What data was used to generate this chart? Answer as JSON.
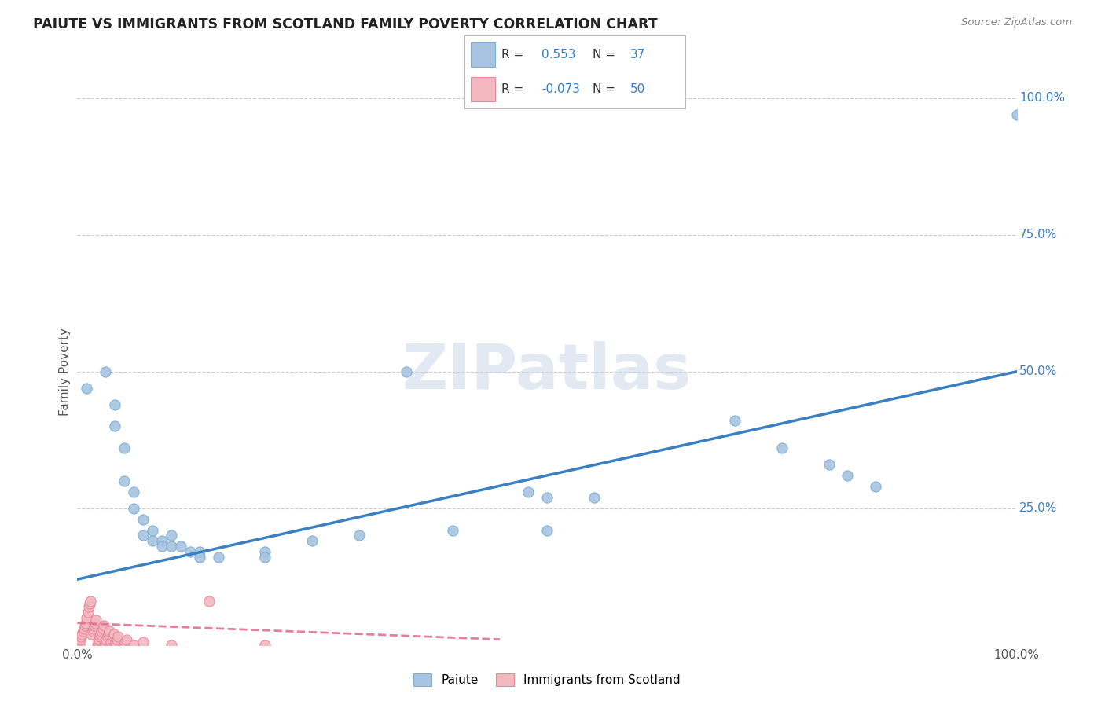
{
  "title": "PAIUTE VS IMMIGRANTS FROM SCOTLAND FAMILY POVERTY CORRELATION CHART",
  "source": "Source: ZipAtlas.com",
  "ylabel": "Family Poverty",
  "xlim": [
    0.0,
    1.0
  ],
  "ylim": [
    0.0,
    1.0
  ],
  "paiute_color": "#a8c4e0",
  "paiute_edge_color": "#7bafd4",
  "scotland_color": "#f4b8c1",
  "scotland_edge_color": "#e8879a",
  "paiute_R": 0.553,
  "paiute_N": 37,
  "scotland_R": -0.073,
  "scotland_N": 50,
  "watermark_text": "ZIPatlas",
  "trend_blue_color": "#3a7fc1",
  "trend_pink_color": "#e07090",
  "grid_color": "#cccccc",
  "paiute_trend_x0": 0.0,
  "paiute_trend_y0": 0.12,
  "paiute_trend_x1": 1.0,
  "paiute_trend_y1": 0.5,
  "scotland_trend_x0": 0.0,
  "scotland_trend_y0": 0.04,
  "scotland_trend_x1": 0.45,
  "scotland_trend_y1": 0.01,
  "paiute_points": [
    [
      0.01,
      0.47
    ],
    [
      0.03,
      0.5
    ],
    [
      0.04,
      0.44
    ],
    [
      0.04,
      0.4
    ],
    [
      0.05,
      0.36
    ],
    [
      0.05,
      0.3
    ],
    [
      0.06,
      0.28
    ],
    [
      0.06,
      0.25
    ],
    [
      0.07,
      0.23
    ],
    [
      0.07,
      0.2
    ],
    [
      0.08,
      0.21
    ],
    [
      0.08,
      0.19
    ],
    [
      0.09,
      0.19
    ],
    [
      0.09,
      0.18
    ],
    [
      0.1,
      0.2
    ],
    [
      0.1,
      0.18
    ],
    [
      0.11,
      0.18
    ],
    [
      0.12,
      0.17
    ],
    [
      0.13,
      0.17
    ],
    [
      0.13,
      0.16
    ],
    [
      0.15,
      0.16
    ],
    [
      0.2,
      0.17
    ],
    [
      0.2,
      0.16
    ],
    [
      0.25,
      0.19
    ],
    [
      0.3,
      0.2
    ],
    [
      0.35,
      0.5
    ],
    [
      0.4,
      0.21
    ],
    [
      0.48,
      0.28
    ],
    [
      0.5,
      0.27
    ],
    [
      0.5,
      0.21
    ],
    [
      0.55,
      0.27
    ],
    [
      0.7,
      0.41
    ],
    [
      0.75,
      0.36
    ],
    [
      0.8,
      0.33
    ],
    [
      0.82,
      0.31
    ],
    [
      0.85,
      0.29
    ],
    [
      1.0,
      0.97
    ]
  ],
  "scotland_points": [
    [
      0.002,
      0.0
    ],
    [
      0.003,
      0.01
    ],
    [
      0.004,
      0.015
    ],
    [
      0.005,
      0.02
    ],
    [
      0.006,
      0.025
    ],
    [
      0.007,
      0.03
    ],
    [
      0.008,
      0.035
    ],
    [
      0.009,
      0.04
    ],
    [
      0.01,
      0.05
    ],
    [
      0.011,
      0.06
    ],
    [
      0.012,
      0.07
    ],
    [
      0.013,
      0.075
    ],
    [
      0.014,
      0.08
    ],
    [
      0.015,
      0.02
    ],
    [
      0.016,
      0.025
    ],
    [
      0.017,
      0.03
    ],
    [
      0.018,
      0.035
    ],
    [
      0.019,
      0.04
    ],
    [
      0.02,
      0.045
    ],
    [
      0.021,
      0.0
    ],
    [
      0.022,
      0.005
    ],
    [
      0.023,
      0.01
    ],
    [
      0.024,
      0.015
    ],
    [
      0.025,
      0.02
    ],
    [
      0.026,
      0.025
    ],
    [
      0.027,
      0.03
    ],
    [
      0.028,
      0.035
    ],
    [
      0.029,
      0.0
    ],
    [
      0.03,
      0.005
    ],
    [
      0.031,
      0.01
    ],
    [
      0.032,
      0.015
    ],
    [
      0.033,
      0.02
    ],
    [
      0.034,
      0.025
    ],
    [
      0.035,
      0.0
    ],
    [
      0.036,
      0.005
    ],
    [
      0.037,
      0.01
    ],
    [
      0.038,
      0.015
    ],
    [
      0.039,
      0.02
    ],
    [
      0.04,
      0.0
    ],
    [
      0.041,
      0.005
    ],
    [
      0.042,
      0.01
    ],
    [
      0.043,
      0.015
    ],
    [
      0.05,
      0.0
    ],
    [
      0.051,
      0.005
    ],
    [
      0.052,
      0.01
    ],
    [
      0.06,
      0.0
    ],
    [
      0.07,
      0.005
    ],
    [
      0.1,
      0.0
    ],
    [
      0.14,
      0.08
    ],
    [
      0.2,
      0.0
    ]
  ]
}
